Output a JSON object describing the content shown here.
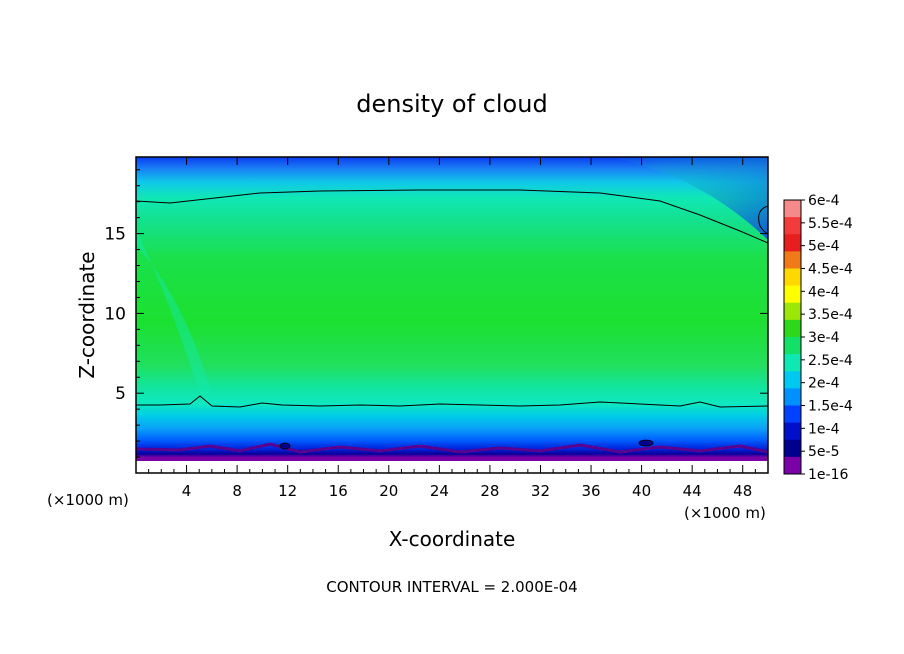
{
  "chart_data": {
    "type": "heatmap",
    "title": "density of cloud",
    "xlabel": "X-coordinate",
    "ylabel": "Z-coordinate",
    "x_unit": "(×1000 m)",
    "xlim": [
      0,
      50
    ],
    "ylim": [
      0,
      19.8
    ],
    "x_ticks": [
      4,
      8,
      12,
      16,
      20,
      24,
      28,
      32,
      36,
      40,
      44,
      48
    ],
    "y_ticks": [
      5,
      10,
      15
    ],
    "footer": "CONTOUR INTERVAL = 2.000E-04",
    "colorbar": {
      "labels": [
        "6e-4",
        "5.5e-4",
        "5e-4",
        "4.5e-4",
        "4e-4",
        "3.5e-4",
        "3e-4",
        "2.5e-4",
        "2e-4",
        "1.5e-4",
        "1e-4",
        "5e-5",
        "1e-16"
      ],
      "colors": [
        "#f58a8a",
        "#f23c3c",
        "#e61e1e",
        "#f07a18",
        "#ffd800",
        "#ffff00",
        "#9ce608",
        "#2dd81a",
        "#14e068",
        "#10e8b4",
        "#00c8f0",
        "#0090ff",
        "#0040ff",
        "#0010c8",
        "#00008c",
        "#7a00a8"
      ]
    },
    "field_description": "cloud density field; maximum near 3e-4 between z≈7 and z≈13; contour line of 2e-4 near z≈17 and z≈4.3; near-zero values below z≈1.5"
  }
}
